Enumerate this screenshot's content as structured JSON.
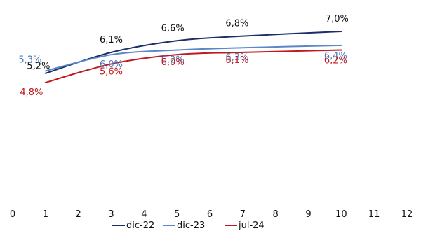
{
  "chart_data": {
    "type": "line",
    "title": "",
    "xlabel": "",
    "ylabel": "",
    "xlim": [
      0,
      12
    ],
    "ylim": [
      4.5,
      7.2
    ],
    "x_ticks": [
      "0",
      "1",
      "2",
      "3",
      "4",
      "5",
      "6",
      "7",
      "8",
      "9",
      "10",
      "11",
      "12"
    ],
    "grid": false,
    "legend_position": "bottom",
    "series": [
      {
        "name": "dic-22",
        "color": "#1b2f66",
        "points": [
          [
            1,
            5.2
          ],
          [
            3,
            6.1
          ],
          [
            5,
            6.6
          ],
          [
            7,
            6.8
          ],
          [
            10,
            7.0
          ]
        ],
        "labels": [
          "5,2%",
          "6,1%",
          "6,6%",
          "6,8%",
          "7,0%"
        ],
        "label_color": "#111111"
      },
      {
        "name": "dic-23",
        "color": "#5b87c8",
        "points": [
          [
            1,
            5.3
          ],
          [
            3,
            6.0
          ],
          [
            5,
            6.2
          ],
          [
            7,
            6.3
          ],
          [
            10,
            6.4
          ]
        ],
        "labels": [
          "5,3%",
          "6,0%",
          "6,2%",
          "6,3%",
          "6,4%"
        ],
        "label_color": "#4a78c0"
      },
      {
        "name": "jul-24",
        "color": "#c0191f",
        "points": [
          [
            1,
            4.8
          ],
          [
            3,
            5.6
          ],
          [
            5,
            6.0
          ],
          [
            7,
            6.1
          ],
          [
            10,
            6.2
          ]
        ],
        "labels": [
          "4,8%",
          "5,6%",
          "6,0%",
          "6,1%",
          "6,2%"
        ],
        "label_color": "#c0191f"
      }
    ]
  }
}
